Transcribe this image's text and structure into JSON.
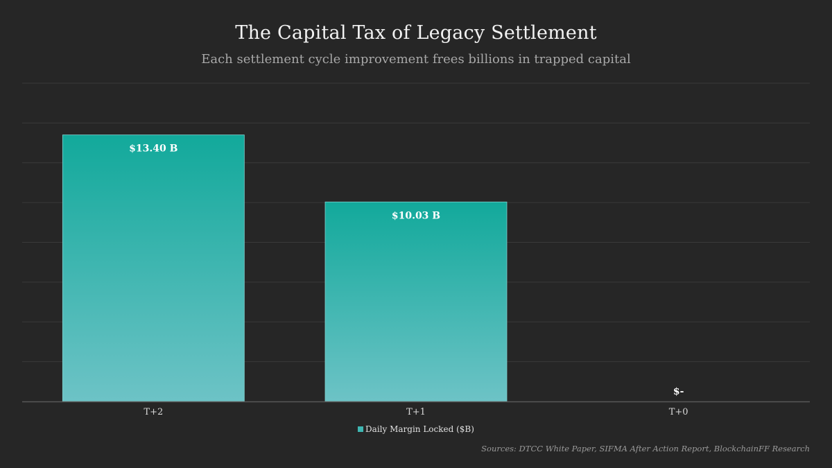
{
  "chart_data": {
    "type": "bar",
    "title": "The Capital Tax of Legacy Settlement",
    "subtitle": "Each settlement cycle improvement frees billions in trapped capital",
    "categories": [
      "T+2",
      "T+1",
      "T+0"
    ],
    "series": [
      {
        "name": "Daily Margin Locked ($B)",
        "values": [
          13.4,
          10.03,
          0
        ],
        "labels": [
          "$13.40 B",
          "$10.03 B",
          "$-"
        ]
      }
    ],
    "xlabel": "",
    "ylabel": "",
    "ylim": [
      0,
      16
    ],
    "grid": true,
    "legend_position": "bottom",
    "source": "Sources: DTCC White Paper, SIFMA After Action Report, BlockchainFF Research",
    "colors": {
      "background": "#262626",
      "bar_top": "#12a99b",
      "bar_bottom": "#6dc3c6",
      "gridline": "#3a3a3a",
      "axis": "#595959"
    }
  }
}
